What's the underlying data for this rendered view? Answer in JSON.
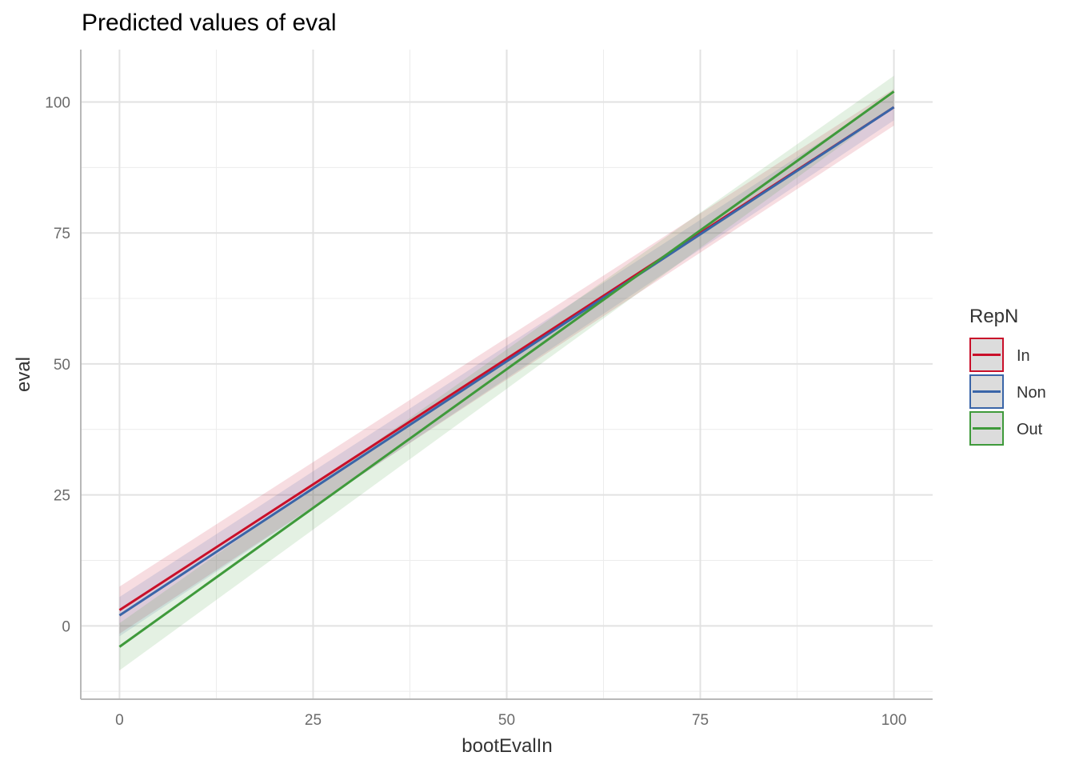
{
  "chart_data": {
    "type": "line",
    "title": "Predicted values of eval",
    "xlabel": "bootEvalIn",
    "ylabel": "eval",
    "xlim": [
      -5,
      105
    ],
    "ylim": [
      -14,
      110
    ],
    "x_ticks": [
      0,
      25,
      50,
      75,
      100
    ],
    "x_tick_labels": [
      "0",
      "25",
      "50",
      "75",
      "100"
    ],
    "y_ticks": [
      0,
      25,
      50,
      75,
      100
    ],
    "y_tick_labels": [
      "0",
      "25",
      "50",
      "75",
      "100"
    ],
    "grid": true,
    "legend": {
      "title": "RepN",
      "placement": "right"
    },
    "x": [
      0,
      100
    ],
    "series": [
      {
        "name": "In",
        "color": "#c9102a",
        "values": [
          3.0,
          99.0
        ],
        "ci_low": [
          -1.5,
          95.5
        ],
        "ci_high": [
          7.5,
          102.5
        ]
      },
      {
        "name": "Non",
        "color": "#3a65a8",
        "values": [
          2.0,
          99.0
        ],
        "ci_low": [
          -2.0,
          96.5
        ],
        "ci_high": [
          5.5,
          101.5
        ]
      },
      {
        "name": "Out",
        "color": "#3f9a3b",
        "values": [
          -4.0,
          102.0
        ],
        "ci_low": [
          -8.5,
          99.0
        ],
        "ci_high": [
          0.5,
          105.0
        ]
      }
    ]
  }
}
